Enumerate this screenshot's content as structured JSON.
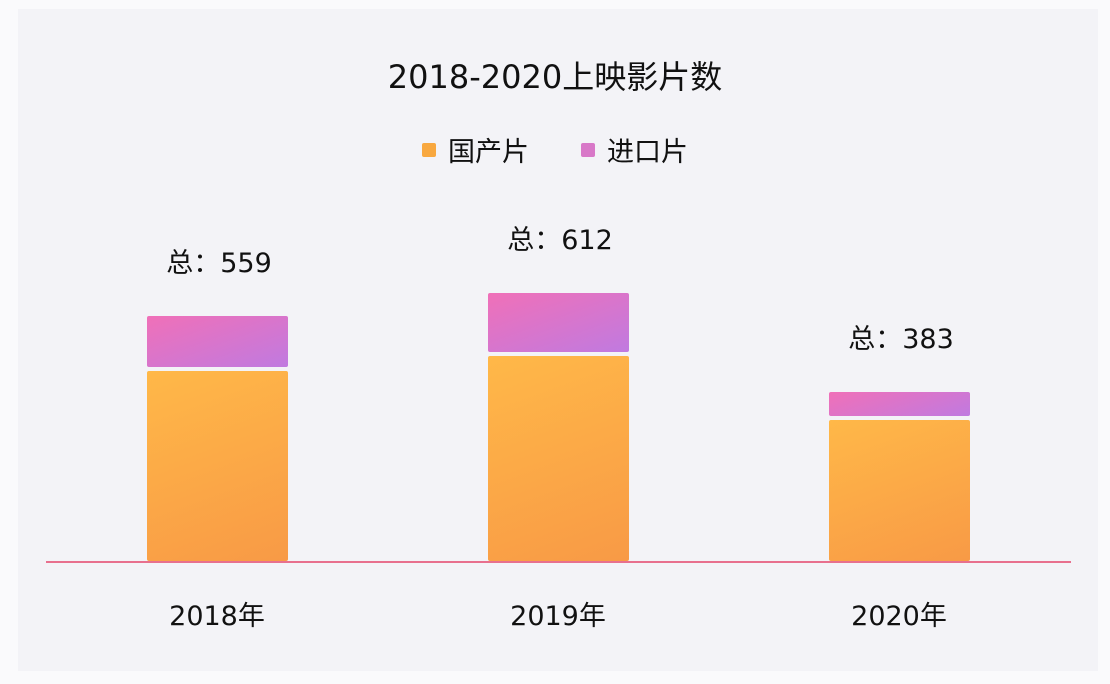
{
  "title": "2018-2020上映影片数",
  "legend": [
    {
      "label": "国产片",
      "color": "#f8a840"
    },
    {
      "label": "进口片",
      "color": "#d878c8"
    }
  ],
  "bars": [
    {
      "category": "2018年",
      "total_label": "总：559",
      "domestic": 440,
      "imported": 119
    },
    {
      "category": "2019年",
      "total_label": "总：612",
      "domestic": 475,
      "imported": 137
    },
    {
      "category": "2020年",
      "total_label": "总：383",
      "domestic": 327,
      "imported": 56
    }
  ],
  "chart_data": {
    "type": "bar",
    "stacked": true,
    "title": "2018-2020上映影片数",
    "categories": [
      "2018年",
      "2019年",
      "2020年"
    ],
    "series": [
      {
        "name": "国产片",
        "values": [
          440,
          475,
          327
        ]
      },
      {
        "name": "进口片",
        "values": [
          119,
          137,
          56
        ]
      }
    ],
    "totals": [
      559,
      612,
      383
    ],
    "annotations": [
      "总：559",
      "总：612",
      "总：383"
    ],
    "xlabel": "",
    "ylabel": "",
    "legend_position": "top",
    "grid": false
  }
}
